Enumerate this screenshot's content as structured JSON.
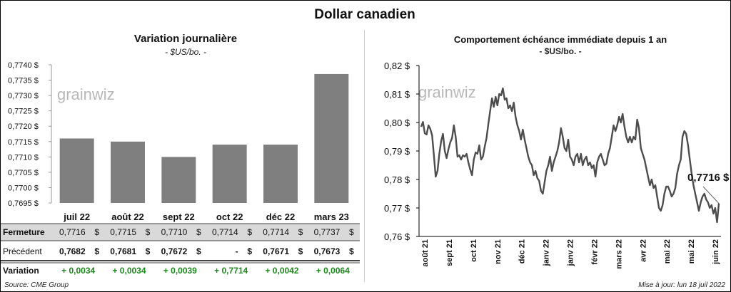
{
  "title": "Dollar canadien",
  "left_chart": {
    "title": "Variation  journalière",
    "units": "- $US/bo. -",
    "y_tick_labels": [
      "0,7695 $",
      "0,7700 $",
      "0,7705 $",
      "0,7710 $",
      "0,7715 $",
      "0,7720 $",
      "0,7725 $",
      "0,7730 $",
      "0,7735 $",
      "0,7740 $"
    ],
    "watermark": "grainwiz"
  },
  "right_chart": {
    "title": "Comportement échéance immédiate depuis 1 an",
    "units": "- $US/bo. -",
    "y_tick_labels": [
      "0,76 $",
      "0,77 $",
      "0,78 $",
      "0,79 $",
      "0,80 $",
      "0,81 $",
      "0,82 $"
    ],
    "month_labels": [
      "août 21",
      "sept 21",
      "oct 21",
      "nov 21",
      "déc 21",
      "janv 22",
      "janv 22",
      "févr 22",
      "mars 22",
      "avr 22",
      "mai 22",
      "mai 22",
      "juin 22"
    ],
    "last_value_label": "0,7716 $",
    "watermark": "grainwiz"
  },
  "table": {
    "rows": [
      {
        "label": "Fermeture",
        "cells": [
          "0,7716",
          "0,7715",
          "0,7710",
          "0,7714",
          "0,7714",
          "0,7737"
        ],
        "suffix": "$"
      },
      {
        "label": "Précédent",
        "cells": [
          "0,7682",
          "0,7681",
          "0,7672",
          "-",
          "0,7671",
          "0,7673"
        ],
        "suffix": "$"
      },
      {
        "label": "Variation",
        "cells": [
          "+ 0,0034",
          "+ 0,0034",
          "+ 0,0039",
          "+ 0,7714",
          "+ 0,0042",
          "+ 0,0064"
        ]
      }
    ]
  },
  "footer": {
    "source": "Source: CME Group",
    "updated": "Mise à jour: lun 18 juil 2022"
  },
  "colors": {
    "bar": "#7f7f7f",
    "line": "#4d4d4d",
    "positive": "#1a8a1a",
    "row_shade": "#d9d9d9"
  },
  "chart_data": [
    {
      "type": "bar",
      "title": "Variation  journalière",
      "ylabel": "- $US/bo. -",
      "categories": [
        "juil 22",
        "août 22",
        "sept 22",
        "oct 22",
        "déc 22",
        "mars 23"
      ],
      "values": [
        0.7716,
        0.7715,
        0.771,
        0.7714,
        0.7714,
        0.7737
      ],
      "ylim": [
        0.7695,
        0.774
      ],
      "grid": false
    },
    {
      "type": "line",
      "title": "Comportement échéance immédiate depuis 1 an",
      "ylabel": "- $US/bo. -",
      "ylim": [
        0.76,
        0.82
      ],
      "grid": false,
      "x_start": "2021-07-19",
      "x_end": "2022-07-15",
      "values": [
        0.7985,
        0.8002,
        0.7962,
        0.7958,
        0.799,
        0.7978,
        0.7955,
        0.7885,
        0.781,
        0.783,
        0.789,
        0.7935,
        0.796,
        0.79,
        0.7875,
        0.7905,
        0.793,
        0.7945,
        0.799,
        0.795,
        0.788,
        0.7885,
        0.787,
        0.7885,
        0.788,
        0.789,
        0.786,
        0.7835,
        0.7815,
        0.787,
        0.7895,
        0.789,
        0.792,
        0.787,
        0.788,
        0.7915,
        0.7945,
        0.7995,
        0.804,
        0.8085,
        0.8055,
        0.809,
        0.806,
        0.81,
        0.8095,
        0.812,
        0.808,
        0.8085,
        0.805,
        0.806,
        0.804,
        0.807,
        0.802,
        0.799,
        0.797,
        0.794,
        0.7975,
        0.794,
        0.791,
        0.788,
        0.786,
        0.785,
        0.7815,
        0.783,
        0.7805,
        0.7795,
        0.776,
        0.775,
        0.779,
        0.783,
        0.785,
        0.788,
        0.783,
        0.786,
        0.788,
        0.79,
        0.793,
        0.798,
        0.795,
        0.791,
        0.79,
        0.794,
        0.788,
        0.787,
        0.785,
        0.788,
        0.789,
        0.786,
        0.789,
        0.785,
        0.787,
        0.788,
        0.785,
        0.786,
        0.784,
        0.785,
        0.781,
        0.786,
        0.788,
        0.789,
        0.787,
        0.785,
        0.7855,
        0.789,
        0.791,
        0.795,
        0.799,
        0.797,
        0.799,
        0.802,
        0.8,
        0.803,
        0.7985,
        0.795,
        0.793,
        0.795,
        0.793,
        0.795,
        0.794,
        0.801,
        0.798,
        0.791,
        0.789,
        0.787,
        0.784,
        0.781,
        0.778,
        0.78,
        0.777,
        0.778,
        0.774,
        0.77,
        0.769,
        0.771,
        0.775,
        0.7775,
        0.7775,
        0.776,
        0.774,
        0.775,
        0.777,
        0.782,
        0.785,
        0.787,
        0.795,
        0.797,
        0.796,
        0.792,
        0.787,
        0.782,
        0.778,
        0.775,
        0.772,
        0.769,
        0.772,
        0.774,
        0.775,
        0.773,
        0.772,
        0.77,
        0.771,
        0.768,
        0.77,
        0.765,
        0.7716
      ]
    }
  ]
}
